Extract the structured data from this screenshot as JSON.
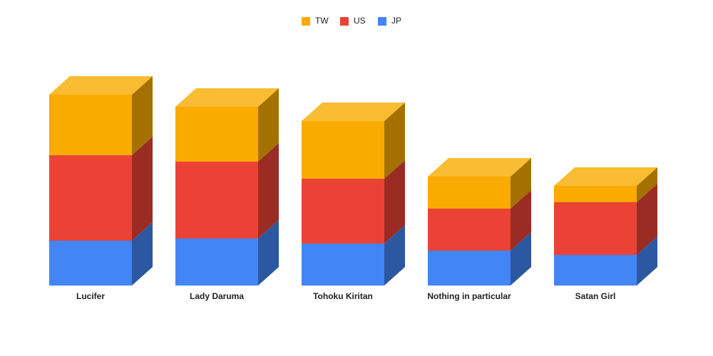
{
  "chart_data": {
    "type": "bar3d-stacked",
    "categories": [
      "Lucifer",
      "Lady Daruma",
      "Tohoku Kiritan",
      "Nothing in particular",
      "Satan Girl"
    ],
    "series": [
      {
        "name": "TW",
        "color": "#f9ab00",
        "values": [
          85,
          77,
          81,
          45,
          23
        ]
      },
      {
        "name": "US",
        "color": "#ea4335",
        "values": [
          120,
          108,
          91,
          59,
          74
        ]
      },
      {
        "name": "JP",
        "color": "#4285f4",
        "values": [
          63,
          66,
          59,
          49,
          43
        ]
      }
    ],
    "legend": "top"
  }
}
